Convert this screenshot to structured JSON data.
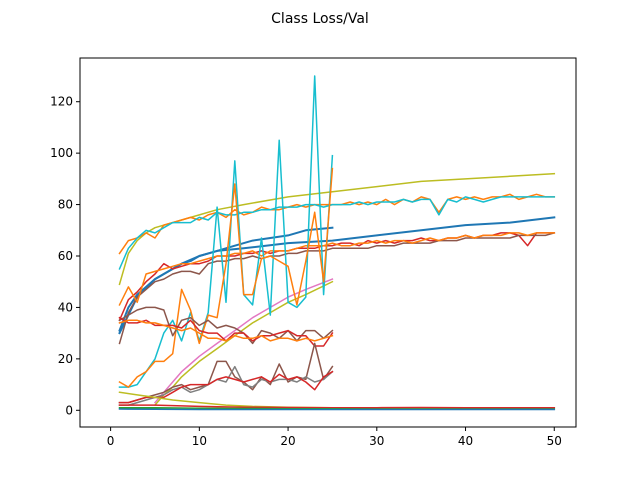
{
  "chart_data": {
    "type": "line",
    "title": "Class Loss/Val",
    "xlabel": "",
    "ylabel": "",
    "xlim": [
      -3.45,
      52.45
    ],
    "ylim": [
      -6.5,
      137
    ],
    "x_ticks": [
      0,
      10,
      20,
      30,
      40,
      50
    ],
    "y_ticks": [
      0,
      20,
      40,
      60,
      80,
      100,
      120
    ],
    "grid": false,
    "legend": "none",
    "series": [
      {
        "color": "#bcbd22",
        "width": 1.5,
        "x": [
          1,
          2,
          3,
          4,
          5,
          8,
          10,
          12,
          15,
          20,
          25,
          30,
          35,
          40,
          45,
          50
        ],
        "y": [
          49,
          61,
          66,
          69,
          71,
          74,
          76,
          78,
          80,
          83,
          85,
          87,
          89,
          90,
          91,
          92
        ]
      },
      {
        "color": "#ff7f0e",
        "width": 1.5,
        "x": [
          1,
          2,
          3,
          4,
          5,
          6,
          7,
          8,
          9,
          10,
          11,
          12,
          13,
          14,
          15,
          16,
          17,
          18,
          19,
          20,
          21,
          22,
          23,
          24,
          25,
          26,
          27,
          28,
          29,
          30,
          31,
          32,
          33,
          34,
          35,
          36,
          37,
          38,
          39,
          40,
          41,
          42,
          43,
          44,
          45,
          46,
          47,
          48,
          49,
          50
        ],
        "y": [
          61,
          66,
          67,
          69,
          67,
          72,
          73,
          74,
          75,
          74,
          76,
          77,
          75,
          78,
          76,
          77,
          79,
          78,
          78,
          79,
          80,
          79,
          80,
          80,
          80,
          80,
          81,
          80,
          81,
          80,
          82,
          80,
          82,
          81,
          83,
          82,
          77,
          82,
          83,
          82,
          83,
          82,
          83,
          83,
          84,
          82,
          83,
          84,
          83,
          83
        ]
      },
      {
        "color": "#17becf",
        "width": 1.5,
        "x": [
          1,
          2,
          3,
          4,
          5,
          6,
          7,
          8,
          9,
          10,
          11,
          12,
          13,
          14,
          15,
          16,
          17,
          18,
          19,
          20,
          21,
          22,
          23,
          24,
          25,
          26,
          27,
          28,
          29,
          30,
          31,
          32,
          33,
          34,
          35,
          36,
          37,
          38,
          39,
          40,
          41,
          42,
          43,
          44,
          45,
          46,
          47,
          48,
          49,
          50
        ],
        "y": [
          55,
          63,
          67,
          70,
          69,
          71,
          73,
          73,
          73,
          75,
          74,
          77,
          76,
          76,
          77,
          77,
          78,
          78,
          79,
          79,
          79,
          80,
          80,
          79,
          80,
          80,
          80,
          81,
          80,
          81,
          81,
          81,
          82,
          81,
          82,
          82,
          76,
          82,
          81,
          83,
          82,
          81,
          82,
          83,
          83,
          83,
          83,
          83,
          83,
          83
        ]
      },
      {
        "color": "#1f77b4",
        "width": 2.0,
        "x": [
          1,
          2,
          3,
          4,
          5,
          6,
          7,
          8,
          9,
          10,
          12,
          14,
          16,
          18,
          20,
          22,
          25
        ],
        "y": [
          31,
          40,
          45,
          48,
          51,
          53,
          55,
          57,
          58,
          60,
          62,
          64,
          66,
          67,
          68,
          70,
          71
        ]
      },
      {
        "color": "#1f77b4",
        "width": 2.0,
        "x": [
          1,
          3,
          5,
          8,
          10,
          12,
          15,
          20,
          25,
          30,
          35,
          40,
          45,
          50
        ],
        "y": [
          30,
          44,
          51,
          57,
          60,
          62,
          63,
          65,
          66,
          68,
          70,
          72,
          73,
          75
        ]
      },
      {
        "color": "#d62728",
        "width": 1.5,
        "x": [
          1,
          2,
          3,
          4,
          5,
          6,
          7,
          8,
          9,
          10,
          11,
          12,
          13,
          14,
          15,
          16,
          17,
          18,
          19,
          20,
          21,
          22,
          23,
          24,
          25,
          26,
          27,
          28,
          29,
          30,
          31,
          32,
          33,
          34,
          35,
          36,
          37,
          38,
          39,
          40,
          41,
          42,
          43,
          44,
          45,
          46,
          47,
          48,
          49,
          50
        ],
        "y": [
          35,
          43,
          46,
          50,
          53,
          57,
          55,
          56,
          57,
          57,
          58,
          60,
          60,
          60,
          61,
          61,
          62,
          61,
          62,
          62,
          63,
          63,
          63,
          64,
          64,
          65,
          65,
          64,
          66,
          65,
          66,
          65,
          66,
          66,
          67,
          66,
          66,
          67,
          67,
          68,
          67,
          68,
          68,
          69,
          69,
          68,
          64,
          69,
          69,
          69
        ]
      },
      {
        "color": "#8c564b",
        "width": 1.5,
        "x": [
          1,
          2,
          3,
          4,
          5,
          6,
          7,
          8,
          9,
          10,
          11,
          12,
          13,
          14,
          15,
          16,
          17,
          18,
          19,
          20,
          21,
          22,
          23,
          24,
          25,
          26,
          27,
          28,
          29,
          30,
          31,
          32,
          33,
          34,
          35,
          36,
          37,
          38,
          39,
          40,
          41,
          42,
          43,
          44,
          45,
          46,
          47,
          48,
          49,
          50
        ],
        "y": [
          26,
          38,
          44,
          47,
          50,
          51,
          53,
          54,
          54,
          53,
          57,
          58,
          58,
          59,
          59,
          60,
          59,
          60,
          60,
          61,
          61,
          62,
          62,
          62,
          63,
          63,
          63,
          63,
          63,
          64,
          64,
          64,
          65,
          65,
          65,
          65,
          66,
          66,
          66,
          67,
          67,
          67,
          67,
          67,
          67,
          68,
          68,
          68,
          68,
          69
        ]
      },
      {
        "color": "#ff7f0e",
        "width": 1.5,
        "x": [
          1,
          2,
          3,
          4,
          5,
          6,
          7,
          8,
          9,
          10,
          11,
          12,
          13,
          14,
          15,
          16,
          17,
          18,
          19,
          20,
          21,
          22,
          23,
          24,
          25,
          26,
          27,
          28,
          29,
          30,
          31,
          32,
          33,
          34,
          35,
          36,
          37,
          38,
          39,
          40,
          41,
          42,
          43,
          44,
          45,
          46,
          47,
          48,
          49,
          50
        ],
        "y": [
          41,
          48,
          42,
          53,
          54,
          55,
          56,
          57,
          57,
          58,
          59,
          60,
          60,
          61,
          61,
          62,
          60,
          62,
          62,
          62,
          63,
          64,
          64,
          64,
          65,
          64,
          64,
          65,
          65,
          66,
          65,
          66,
          66,
          65,
          66,
          67,
          66,
          67,
          67,
          68,
          67,
          68,
          68,
          68,
          69,
          69,
          68,
          69,
          69,
          69
        ]
      },
      {
        "color": "#e377c2",
        "width": 1.5,
        "x": [
          5,
          6,
          7,
          8,
          9,
          10,
          12,
          14,
          16,
          18,
          20,
          22,
          25
        ],
        "y": [
          3,
          7,
          11,
          15,
          18,
          21,
          26,
          31,
          36,
          40,
          44,
          47,
          51
        ]
      },
      {
        "color": "#bcbd22",
        "width": 1.5,
        "x": [
          5,
          6,
          7,
          8,
          9,
          10,
          12,
          14,
          16,
          18,
          20,
          22,
          25
        ],
        "y": [
          2,
          6,
          9,
          13,
          16,
          19,
          24,
          29,
          34,
          38,
          42,
          45,
          50
        ]
      },
      {
        "color": "#17becf",
        "width": 1.5,
        "x": [
          1,
          2,
          3,
          4,
          5,
          6,
          7,
          8,
          9,
          10,
          11,
          12,
          13,
          14,
          15,
          16,
          17,
          18,
          19,
          20,
          21,
          22,
          23,
          24,
          25
        ],
        "y": [
          9,
          9,
          10,
          15,
          20,
          30,
          35,
          27,
          38,
          27,
          38,
          79,
          42,
          97,
          45,
          41,
          67,
          37,
          105,
          42,
          40,
          44,
          130,
          45,
          99
        ]
      },
      {
        "color": "#ff7f0e",
        "width": 1.5,
        "x": [
          1,
          2,
          3,
          4,
          5,
          6,
          7,
          8,
          9,
          10,
          11,
          12,
          13,
          14,
          15,
          16,
          17,
          18,
          19,
          20,
          21,
          22,
          23,
          24,
          25
        ],
        "y": [
          11,
          9,
          13,
          15,
          19,
          19,
          22,
          47,
          39,
          26,
          37,
          36,
          57,
          88,
          45,
          45,
          59,
          60,
          58,
          56,
          41,
          58,
          77,
          50,
          94
        ]
      },
      {
        "color": "#8c564b",
        "width": 1.5,
        "x": [
          1,
          2,
          3,
          4,
          5,
          6,
          7,
          8,
          9,
          10,
          11,
          12,
          13,
          14,
          15,
          16,
          17,
          18,
          19,
          20,
          21,
          22,
          23,
          24,
          25
        ],
        "y": [
          35,
          37,
          39,
          40,
          40,
          39,
          29,
          35,
          36,
          33,
          35,
          32,
          33,
          32,
          30,
          26,
          31,
          30,
          28,
          31,
          27,
          31,
          31,
          28,
          31
        ]
      },
      {
        "color": "#d62728",
        "width": 1.5,
        "x": [
          1,
          2,
          3,
          4,
          5,
          6,
          7,
          8,
          9,
          10,
          11,
          12,
          13,
          14,
          15,
          16,
          17,
          18,
          19,
          20,
          21,
          22,
          23,
          24,
          25
        ],
        "y": [
          36,
          34,
          34,
          35,
          33,
          33,
          33,
          32,
          35,
          31,
          30,
          30,
          27,
          30,
          30,
          27,
          29,
          29,
          30,
          31,
          29,
          29,
          25,
          25,
          30
        ]
      },
      {
        "color": "#ff7f0e",
        "width": 1.5,
        "x": [
          1,
          2,
          3,
          4,
          5,
          6,
          7,
          8,
          9,
          10,
          11,
          12,
          13,
          14,
          15,
          16,
          17,
          18,
          19,
          20,
          21,
          22,
          23,
          24,
          25
        ],
        "y": [
          34,
          35,
          35,
          34,
          34,
          33,
          32,
          31,
          32,
          30,
          28,
          28,
          27,
          29,
          28,
          28,
          29,
          27,
          28,
          28,
          27,
          28,
          27,
          28,
          29
        ]
      },
      {
        "color": "#8c564b",
        "width": 1.5,
        "x": [
          1,
          2,
          3,
          4,
          5,
          6,
          7,
          8,
          9,
          10,
          11,
          12,
          13,
          14,
          15,
          16,
          17,
          18,
          19,
          20,
          21,
          22,
          23,
          24,
          25
        ],
        "y": [
          3,
          3,
          4,
          5,
          6,
          7,
          9,
          10,
          8,
          9,
          10,
          19,
          19,
          13,
          11,
          8,
          13,
          10,
          18,
          11,
          13,
          12,
          26,
          12,
          17
        ]
      },
      {
        "color": "#7f7f7f",
        "width": 1.5,
        "x": [
          1,
          2,
          3,
          4,
          5,
          6,
          7,
          8,
          9,
          10,
          11,
          12,
          13,
          14,
          15,
          16,
          17,
          18,
          19,
          20,
          21,
          22,
          23,
          24,
          25
        ],
        "y": [
          2,
          2,
          3,
          4,
          5,
          6,
          8,
          9,
          7,
          8,
          10,
          12,
          11,
          17,
          10,
          9,
          12,
          11,
          12,
          12,
          11,
          13,
          11,
          12,
          15
        ]
      },
      {
        "color": "#d62728",
        "width": 1.5,
        "x": [
          1,
          2,
          3,
          4,
          5,
          6,
          7,
          8,
          9,
          10,
          11,
          12,
          13,
          14,
          15,
          16,
          17,
          18,
          19,
          20,
          21,
          22,
          23,
          24,
          25
        ],
        "y": [
          3,
          3,
          4,
          5,
          5,
          5,
          7,
          9,
          10,
          10,
          10,
          12,
          13,
          12,
          11,
          12,
          13,
          11,
          14,
          12,
          13,
          11,
          8,
          13,
          15
        ]
      },
      {
        "color": "#bcbd22",
        "width": 1.5,
        "x": [
          1,
          3,
          5,
          7,
          10,
          13,
          16,
          20,
          25,
          30,
          35,
          40,
          45,
          50
        ],
        "y": [
          7,
          6,
          5,
          4,
          3,
          2,
          1.5,
          1.2,
          1.0,
          1.0,
          1.0,
          1.0,
          1.0,
          1.0
        ]
      },
      {
        "color": "#d62728",
        "width": 1.5,
        "x": [
          1,
          5,
          10,
          15,
          20,
          25,
          30,
          35,
          40,
          45,
          50
        ],
        "y": [
          2,
          2,
          1.5,
          1.2,
          1.1,
          1.0,
          1.0,
          1.1,
          1.0,
          1.0,
          1.0
        ]
      },
      {
        "color": "#2ca02c",
        "width": 1.5,
        "x": [
          1,
          5,
          10,
          15,
          20,
          25,
          30,
          35,
          40,
          45,
          50
        ],
        "y": [
          1,
          1,
          0.8,
          0.7,
          0.6,
          0.6,
          0.5,
          0.5,
          0.5,
          0.5,
          0.5
        ]
      },
      {
        "color": "#1f77b4",
        "width": 1.5,
        "x": [
          1,
          5,
          10,
          15,
          20,
          25,
          30,
          35,
          40,
          45,
          50
        ],
        "y": [
          0.5,
          0.4,
          0.3,
          0.3,
          0.3,
          0.3,
          0.3,
          0.3,
          0.3,
          0.3,
          0.3
        ]
      }
    ]
  }
}
